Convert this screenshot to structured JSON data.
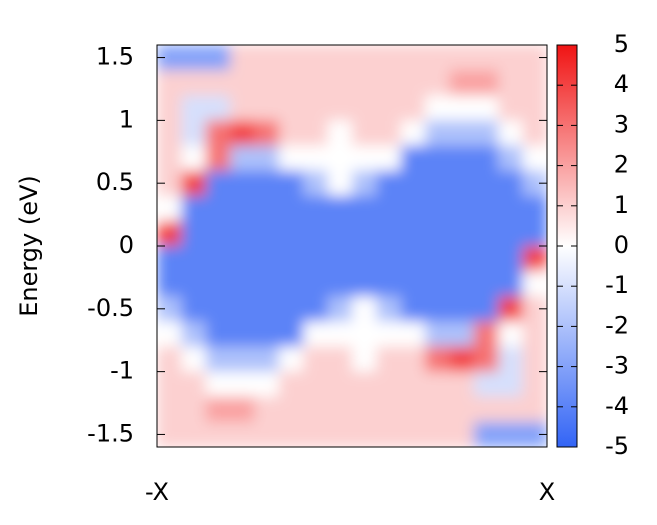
{
  "chart_data": {
    "type": "heatmap",
    "ylabel": "Energy (eV)",
    "x": [
      "-X",
      "X"
    ],
    "ylim": [
      -1.6,
      1.6
    ],
    "yticks": [
      1.5,
      1,
      0.5,
      0,
      -0.5,
      -1,
      -1.5
    ],
    "zlim": [
      -5,
      5
    ],
    "zticks": [
      5,
      4,
      3,
      2,
      1,
      0,
      -1,
      -2,
      -3,
      -4,
      -5
    ],
    "colorscale": [
      "#3264f5",
      "#ffffff",
      "#f01414"
    ],
    "z": [
      [
        -3,
        -3,
        -3,
        1,
        1,
        1,
        1,
        1,
        1,
        1,
        1,
        1,
        1,
        1,
        1,
        1
      ],
      [
        1,
        1,
        1,
        1,
        1,
        1,
        1,
        1,
        1,
        1,
        1,
        1,
        2,
        2,
        1,
        1
      ],
      [
        1,
        -1,
        -1,
        1,
        1,
        1,
        1,
        1,
        1,
        1,
        1,
        0,
        0,
        0,
        1,
        1
      ],
      [
        1,
        -1,
        3,
        4,
        3,
        1,
        1,
        0,
        1,
        1,
        0,
        -2,
        -2,
        -2,
        0,
        1
      ],
      [
        1,
        0,
        3,
        -2,
        -2,
        0,
        0,
        0,
        0,
        0,
        -4,
        -4,
        -4,
        -4,
        -2,
        0
      ],
      [
        1,
        4,
        -4,
        -4,
        -4,
        -4,
        -2,
        0,
        -2,
        -4,
        -4,
        -4,
        -4,
        -4,
        -4,
        -2
      ],
      [
        0,
        -4,
        -4,
        -4,
        -4,
        -4,
        -4,
        -4,
        -4,
        -4,
        -4,
        -4,
        -4,
        -4,
        -4,
        -4
      ],
      [
        4,
        -4,
        -4,
        -4,
        -4,
        -4,
        -4,
        -4,
        -4,
        -4,
        -4,
        -4,
        -4,
        -4,
        -4,
        -4
      ],
      [
        -4,
        -4,
        -4,
        -4,
        -4,
        -4,
        -4,
        -4,
        -4,
        -4,
        -4,
        -4,
        -4,
        -4,
        -4,
        4
      ],
      [
        -4,
        -4,
        -4,
        -4,
        -4,
        -4,
        -4,
        -4,
        -4,
        -4,
        -4,
        -4,
        -4,
        -4,
        -4,
        0
      ],
      [
        -2,
        -4,
        -4,
        -4,
        -4,
        -4,
        -4,
        -2,
        0,
        -2,
        -4,
        -4,
        -4,
        -4,
        4,
        1
      ],
      [
        0,
        -2,
        -4,
        -4,
        -4,
        -4,
        0,
        0,
        0,
        0,
        0,
        -2,
        -2,
        3,
        0,
        1
      ],
      [
        1,
        0,
        -2,
        -2,
        -2,
        0,
        1,
        1,
        0,
        1,
        1,
        3,
        4,
        3,
        -1,
        1
      ],
      [
        1,
        1,
        0,
        0,
        0,
        1,
        1,
        1,
        1,
        1,
        1,
        1,
        1,
        -1,
        -1,
        1
      ],
      [
        1,
        1,
        2,
        2,
        1,
        1,
        1,
        1,
        1,
        1,
        1,
        1,
        1,
        1,
        1,
        1
      ],
      [
        1,
        1,
        1,
        1,
        1,
        1,
        1,
        1,
        1,
        1,
        1,
        1,
        1,
        -3,
        -3,
        -3
      ]
    ]
  }
}
